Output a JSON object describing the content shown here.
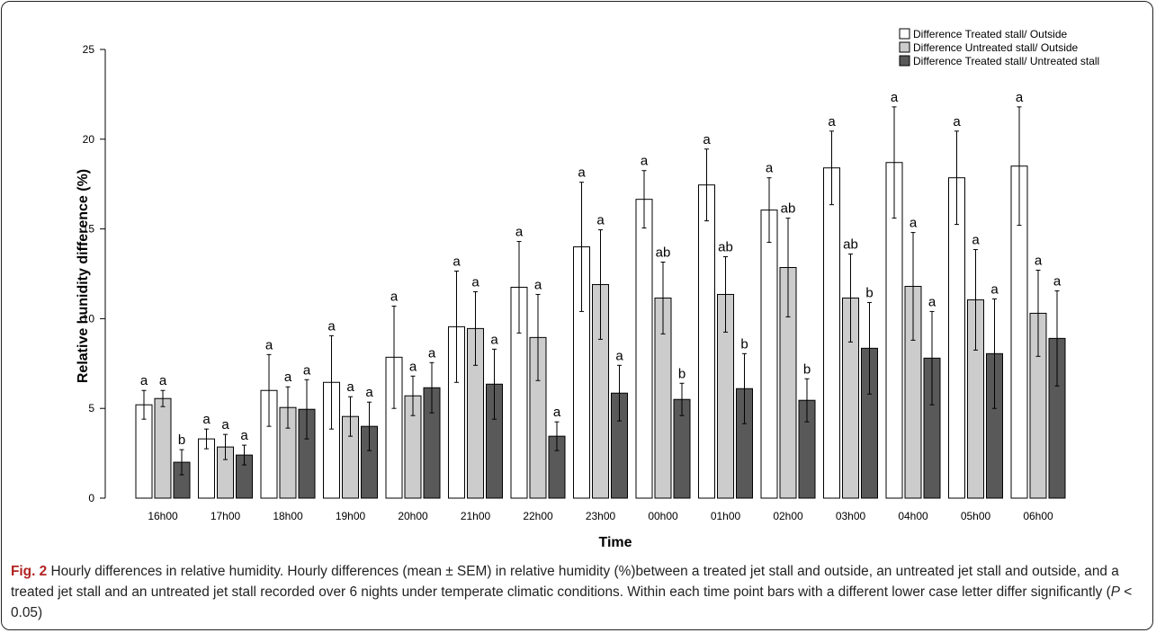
{
  "chart_data": {
    "type": "bar",
    "xlabel": "Time",
    "ylabel": "Relative hunidity difference (%)",
    "ylim": [
      0,
      25
    ],
    "yticks": [
      0,
      5,
      10,
      15,
      20,
      25
    ],
    "grid": false,
    "legend_position": "top-right",
    "categories": [
      "16h00",
      "17h00",
      "18h00",
      "19h00",
      "20h00",
      "21h00",
      "22h00",
      "23h00",
      "00h00",
      "01h00",
      "02h00",
      "03h00",
      "04h00",
      "05h00",
      "06h00"
    ],
    "series": [
      {
        "name": "Difference Treated stall/ Outside",
        "color": "#ffffff",
        "values": [
          5.2,
          3.3,
          6.0,
          6.45,
          7.85,
          9.55,
          11.75,
          14.0,
          16.65,
          17.45,
          16.05,
          18.4,
          18.7,
          17.85,
          18.5
        ],
        "sem": [
          0.8,
          0.55,
          2.0,
          2.6,
          2.85,
          3.1,
          2.55,
          3.6,
          1.6,
          2.0,
          1.8,
          2.05,
          3.1,
          2.6,
          3.3
        ],
        "letters": [
          "a",
          "a",
          "a",
          "a",
          "a",
          "a",
          "a",
          "a",
          "a",
          "a",
          "a",
          "a",
          "a",
          "a",
          "a"
        ]
      },
      {
        "name": "Difference Untreated stall/ Outside",
        "color": "#cccccc",
        "values": [
          5.55,
          2.85,
          5.05,
          4.55,
          5.7,
          9.45,
          8.95,
          11.9,
          11.15,
          11.35,
          12.85,
          11.15,
          11.8,
          11.05,
          10.3
        ],
        "sem": [
          0.45,
          0.7,
          1.15,
          1.1,
          1.1,
          2.05,
          2.4,
          3.05,
          2.0,
          2.1,
          2.75,
          2.45,
          3.0,
          2.8,
          2.4
        ],
        "letters": [
          "a",
          "a",
          "a",
          "a",
          "a",
          "a",
          "a",
          "a",
          "ab",
          "ab",
          "ab",
          "ab",
          "a",
          "a",
          "a"
        ]
      },
      {
        "name": "Difference Treated stall/ Untreated stall",
        "color": "#595959",
        "values": [
          2.0,
          2.4,
          4.95,
          4.0,
          6.15,
          6.35,
          3.45,
          5.85,
          5.5,
          6.1,
          5.45,
          8.35,
          7.8,
          8.05,
          8.9
        ],
        "sem": [
          0.7,
          0.55,
          1.65,
          1.35,
          1.4,
          1.95,
          0.8,
          1.55,
          0.9,
          1.95,
          1.2,
          2.55,
          2.6,
          3.05,
          2.65
        ],
        "letters": [
          "b",
          "a",
          "a",
          "a",
          "a",
          "a",
          "a",
          "a",
          "b",
          "b",
          "b",
          "b",
          "a",
          "a",
          "a"
        ]
      }
    ]
  },
  "caption": {
    "label": "Fig. 2",
    "text_1": " Hourly differences in relative humidity. Hourly differences (mean ± SEM) in relative humidity (%)between a treated jet stall and outside, an untreated jet stall and outside, and a treated jet stall and an untreated jet stall recorded over 6 nights under temperate climatic conditions. Within each time point bars with a different lower case letter differ significantly (",
    "p_symbol": "P",
    "text_2": " < 0.05)"
  }
}
